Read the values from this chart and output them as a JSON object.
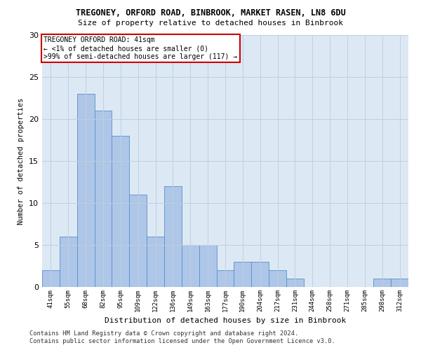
{
  "title1": "TREGONEY, ORFORD ROAD, BINBROOK, MARKET RASEN, LN8 6DU",
  "title2": "Size of property relative to detached houses in Binbrook",
  "xlabel": "Distribution of detached houses by size in Binbrook",
  "ylabel": "Number of detached properties",
  "categories": [
    "41sqm",
    "55sqm",
    "68sqm",
    "82sqm",
    "95sqm",
    "109sqm",
    "122sqm",
    "136sqm",
    "149sqm",
    "163sqm",
    "177sqm",
    "190sqm",
    "204sqm",
    "217sqm",
    "231sqm",
    "244sqm",
    "258sqm",
    "271sqm",
    "285sqm",
    "298sqm",
    "312sqm"
  ],
  "values": [
    2,
    6,
    23,
    21,
    18,
    11,
    6,
    12,
    5,
    5,
    2,
    3,
    3,
    2,
    1,
    0,
    0,
    0,
    0,
    1,
    1
  ],
  "bar_color": "#aec6e8",
  "bar_edge_color": "#5a8fc2",
  "annotation_text": "TREGONEY ORFORD ROAD: 41sqm\n← <1% of detached houses are smaller (0)\n>99% of semi-detached houses are larger (117) →",
  "annotation_box_color": "#ffffff",
  "annotation_box_edge_color": "#cc0000",
  "ylim": [
    0,
    30
  ],
  "yticks": [
    0,
    5,
    10,
    15,
    20,
    25,
    30
  ],
  "footer1": "Contains HM Land Registry data © Crown copyright and database right 2024.",
  "footer2": "Contains public sector information licensed under the Open Government Licence v3.0.",
  "bg_color": "#ffffff",
  "plot_bg_color": "#dce9f5",
  "grid_color": "#c0cfe0"
}
